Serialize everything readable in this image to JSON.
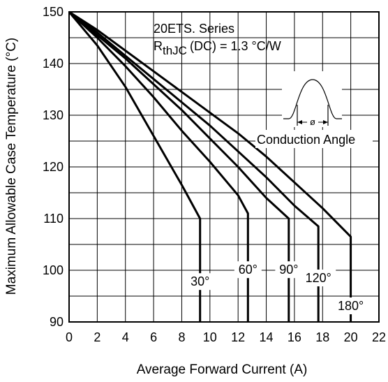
{
  "chart_data": {
    "type": "line",
    "title": "",
    "xlabel": "Average Forward Current (A)",
    "ylabel": "Maximum Allowable Case Temperature (°C)",
    "xlim": [
      0,
      22
    ],
    "ylim": [
      90,
      150
    ],
    "xticks": [
      0,
      2,
      4,
      6,
      8,
      10,
      12,
      14,
      16,
      18,
      20,
      22
    ],
    "yticks": [
      90,
      100,
      110,
      120,
      130,
      140,
      150
    ],
    "grid": true,
    "legend": "none",
    "annotations": {
      "series_name": "20ETS. Series",
      "rth_prefix": "R",
      "rth_subscript": "thJC",
      "rth_suffix": "(DC) = 1.3 °C/W",
      "diagram_label": "Conduction Angle",
      "diagram_symbol": "ø"
    },
    "series": [
      {
        "name": "30°",
        "x": [
          0,
          2,
          4,
          6,
          8,
          9.3,
          9.3
        ],
        "y": [
          150,
          143.5,
          135.5,
          126,
          116.5,
          110,
          90
        ]
      },
      {
        "name": "60°",
        "x": [
          0,
          2,
          4,
          6,
          8,
          10,
          12,
          12.7,
          12.7
        ],
        "y": [
          150,
          145,
          139.5,
          133.5,
          127,
          121,
          114.5,
          111,
          90
        ]
      },
      {
        "name": "90°",
        "x": [
          0,
          2,
          4,
          6,
          8,
          10,
          12,
          14,
          15.6,
          15.6
        ],
        "y": [
          150,
          145.5,
          141,
          136,
          131,
          125.5,
          120,
          114,
          110,
          90
        ]
      },
      {
        "name": "120°",
        "x": [
          0,
          2,
          4,
          6,
          8,
          10,
          12,
          14,
          16,
          17.7,
          17.7
        ],
        "y": [
          150,
          146,
          141.5,
          137,
          132.5,
          128,
          123,
          118,
          112.5,
          108.5,
          90
        ]
      },
      {
        "name": "180°",
        "x": [
          0,
          2,
          4,
          6,
          8,
          10,
          12,
          14,
          16,
          18,
          20,
          20
        ],
        "y": [
          150,
          146.5,
          142.5,
          138.5,
          134.5,
          130.5,
          126.5,
          122,
          117,
          112,
          106.5,
          90
        ]
      }
    ]
  }
}
